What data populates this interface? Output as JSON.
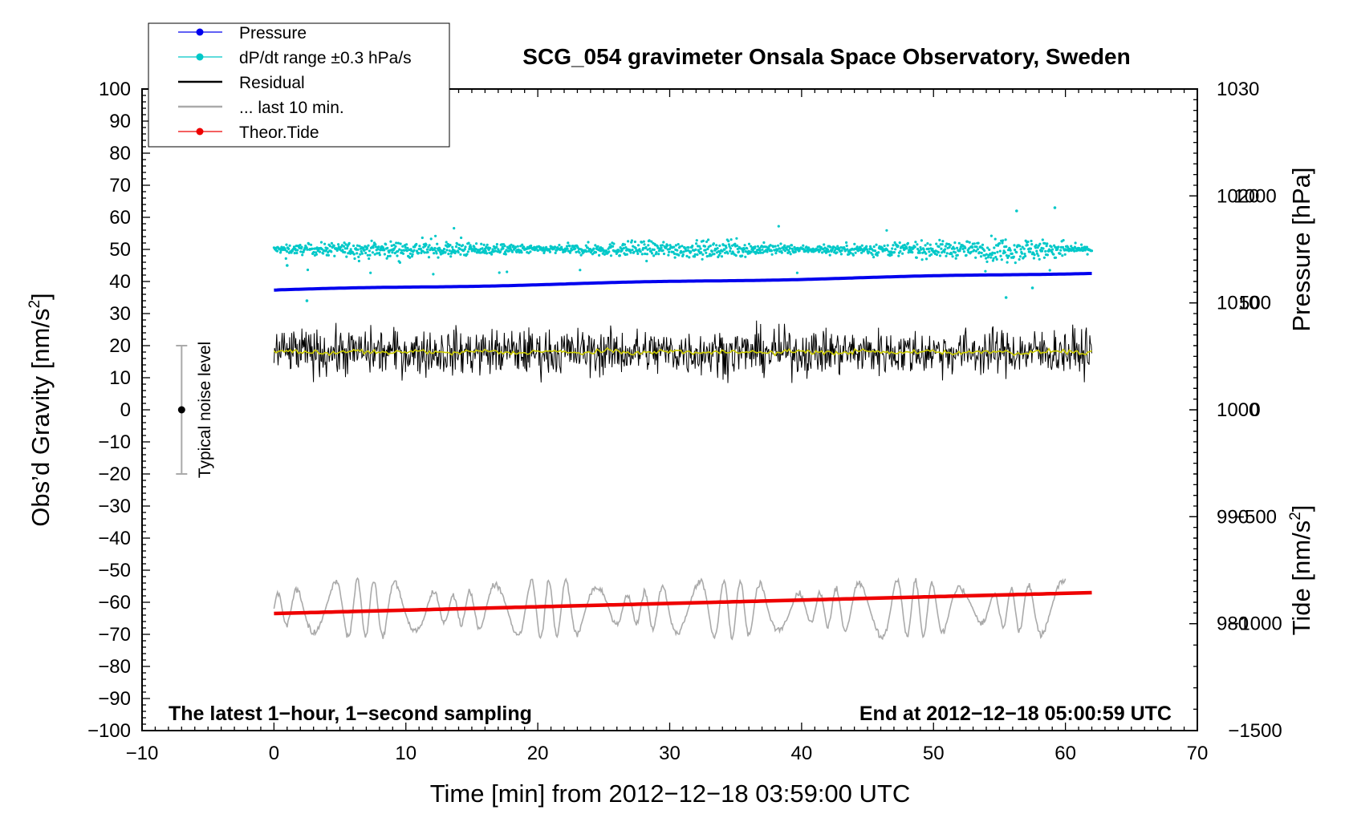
{
  "chart_data": {
    "type": "line",
    "title": "SCG_054 gravimeter Onsala Space Observatory, Sweden",
    "xlabel": "Time [min] from 2012−12−18 03:59:00 UTC",
    "ylabel_left": "Obs’d Gravity [nm/s",
    "ylabel_left_sup": "2",
    "ylabel_left_end": "]",
    "ylabel_right_pressure": "Pressure [hPa]",
    "ylabel_right_tide": "Tide [nm/s",
    "ylabel_right_tide_sup": "2",
    "ylabel_right_tide_end": "]",
    "xlim": [
      -10,
      70
    ],
    "ylim": [
      -100,
      100
    ],
    "pressure_lim": [
      970,
      1030
    ],
    "tide_lim": [
      -1500,
      1500
    ],
    "x_ticks": [
      {
        "v": -10,
        "label": "−10"
      },
      {
        "v": 0,
        "label": "0"
      },
      {
        "v": 10,
        "label": "10"
      },
      {
        "v": 20,
        "label": "20"
      },
      {
        "v": 30,
        "label": "30"
      },
      {
        "v": 40,
        "label": "40"
      },
      {
        "v": 50,
        "label": "50"
      },
      {
        "v": 60,
        "label": "60"
      },
      {
        "v": 70,
        "label": "70"
      }
    ],
    "y_ticks_left": [
      {
        "v": 100,
        "label": "100"
      },
      {
        "v": 90,
        "label": "90"
      },
      {
        "v": 80,
        "label": "80"
      },
      {
        "v": 70,
        "label": "70"
      },
      {
        "v": 60,
        "label": "60"
      },
      {
        "v": 50,
        "label": "50"
      },
      {
        "v": 40,
        "label": "40"
      },
      {
        "v": 30,
        "label": "30"
      },
      {
        "v": 20,
        "label": "20"
      },
      {
        "v": 10,
        "label": "10"
      },
      {
        "v": 0,
        "label": "0"
      },
      {
        "v": -10,
        "label": "−10"
      },
      {
        "v": -20,
        "label": "−20"
      },
      {
        "v": -30,
        "label": "−30"
      },
      {
        "v": -40,
        "label": "−40"
      },
      {
        "v": -50,
        "label": "−50"
      },
      {
        "v": -60,
        "label": "−60"
      },
      {
        "v": -70,
        "label": "−70"
      },
      {
        "v": -80,
        "label": "−80"
      },
      {
        "v": -90,
        "label": "−90"
      },
      {
        "v": -100,
        "label": "−100"
      }
    ],
    "pressure_ticks": [
      {
        "v": 1030,
        "label": "1030"
      },
      {
        "v": 1020,
        "label": "1020"
      },
      {
        "v": 1010,
        "label": "1010"
      },
      {
        "v": 1000,
        "label": "1000"
      },
      {
        "v": 990,
        "label": "990"
      },
      {
        "v": 980,
        "label": "980"
      }
    ],
    "tide_ticks": [
      {
        "v": 1000,
        "label": "1000"
      },
      {
        "v": 500,
        "label": "500"
      },
      {
        "v": 0,
        "label": "0"
      },
      {
        "v": -500,
        "label": "−500"
      },
      {
        "v": -1000,
        "label": "−1000"
      },
      {
        "v": -1500,
        "label": "−1500"
      }
    ],
    "legend": {
      "placement": "top-left",
      "entries": [
        {
          "name": "Pressure",
          "color": "#0000ee",
          "marker": true
        },
        {
          "name": "dP/dt range ±0.3 hPa/s",
          "color": "#00c8c8",
          "marker": true
        },
        {
          "name": "Residual",
          "color": "#000000",
          "marker": false
        },
        {
          "name": "... last 10 min.",
          "color": "#aaaaaa",
          "marker": false
        },
        {
          "name": "Theor.Tide",
          "color": "#ee0000",
          "marker": true
        }
      ]
    },
    "series": [
      {
        "name": "Pressure",
        "axis": "pressure",
        "color": "#0000ee",
        "x_range": [
          0,
          62
        ],
        "start": 1011.2,
        "end": 1012.8
      },
      {
        "name": "dP/dt range ±0.3 hPa/s",
        "axis": "left",
        "color": "#00c8c8",
        "x_range": [
          0,
          62
        ],
        "center": 50,
        "spread": 5,
        "max_outlier": 63,
        "min_outlier": 35
      },
      {
        "name": "Residual",
        "axis": "left",
        "color": "#000000",
        "x_range": [
          0,
          62
        ],
        "center": 18,
        "min": 3,
        "max": 30
      },
      {
        "name": "Residual smoothed",
        "axis": "left",
        "color": "#cccc00",
        "x_range": [
          0,
          62
        ],
        "center": 18
      },
      {
        "name": "... last 10 min.",
        "axis": "left",
        "color": "#aaaaaa",
        "x_range": [
          0,
          60
        ],
        "center": -62,
        "min": -75,
        "max": -50
      },
      {
        "name": "Theor.Tide",
        "axis": "left",
        "color": "#ee0000",
        "x_range": [
          0,
          62
        ],
        "start": -63.5,
        "end": -57.0
      }
    ],
    "noise_indicator": {
      "label": "Typical noise level",
      "x": -7,
      "center": 0,
      "low": -20,
      "high": 20
    },
    "annotations": [
      {
        "text": "The latest 1−hour, 1−second sampling",
        "position": "bottom-left"
      },
      {
        "text": "End at 2012−12−18 05:00:59 UTC",
        "position": "bottom-right"
      }
    ]
  }
}
